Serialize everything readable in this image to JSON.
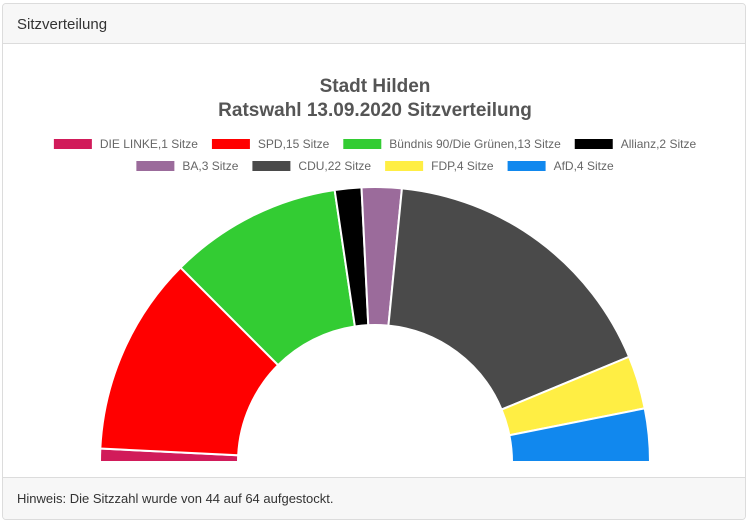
{
  "card": {
    "header_title": "Sitzverteilung",
    "footer_note": "Hinweis: Die Sitzzahl wurde von 44 auf 64 aufgestockt."
  },
  "chart_data": {
    "type": "pie",
    "subtype": "semicircle-doughnut",
    "title": "Stadt Hilden",
    "subtitle": "Ratswahl 13.09.2020 Sitzverteilung",
    "legend_position": "top",
    "total_seats": 64,
    "series": [
      {
        "name": "DIE LINKE",
        "label": "DIE LINKE,1 Sitze",
        "value": 1,
        "color": "#d11b5a"
      },
      {
        "name": "SPD",
        "label": "SPD,15 Sitze",
        "value": 15,
        "color": "#ff0000"
      },
      {
        "name": "Bündnis 90/Die Grünen",
        "label": "Bündnis 90/Die Grünen,13 Sitze",
        "value": 13,
        "color": "#33cc33"
      },
      {
        "name": "Allianz",
        "label": "Allianz,2 Sitze",
        "value": 2,
        "color": "#000000"
      },
      {
        "name": "BA",
        "label": "BA,3 Sitze",
        "value": 3,
        "color": "#9b6b9b"
      },
      {
        "name": "CDU",
        "label": "CDU,22 Sitze",
        "value": 22,
        "color": "#4a4a4a"
      },
      {
        "name": "FDP",
        "label": "FDP,4 Sitze",
        "value": 4,
        "color": "#ffee44"
      },
      {
        "name": "AfD",
        "label": "AfD,4 Sitze",
        "value": 4,
        "color": "#1188ee"
      }
    ]
  }
}
